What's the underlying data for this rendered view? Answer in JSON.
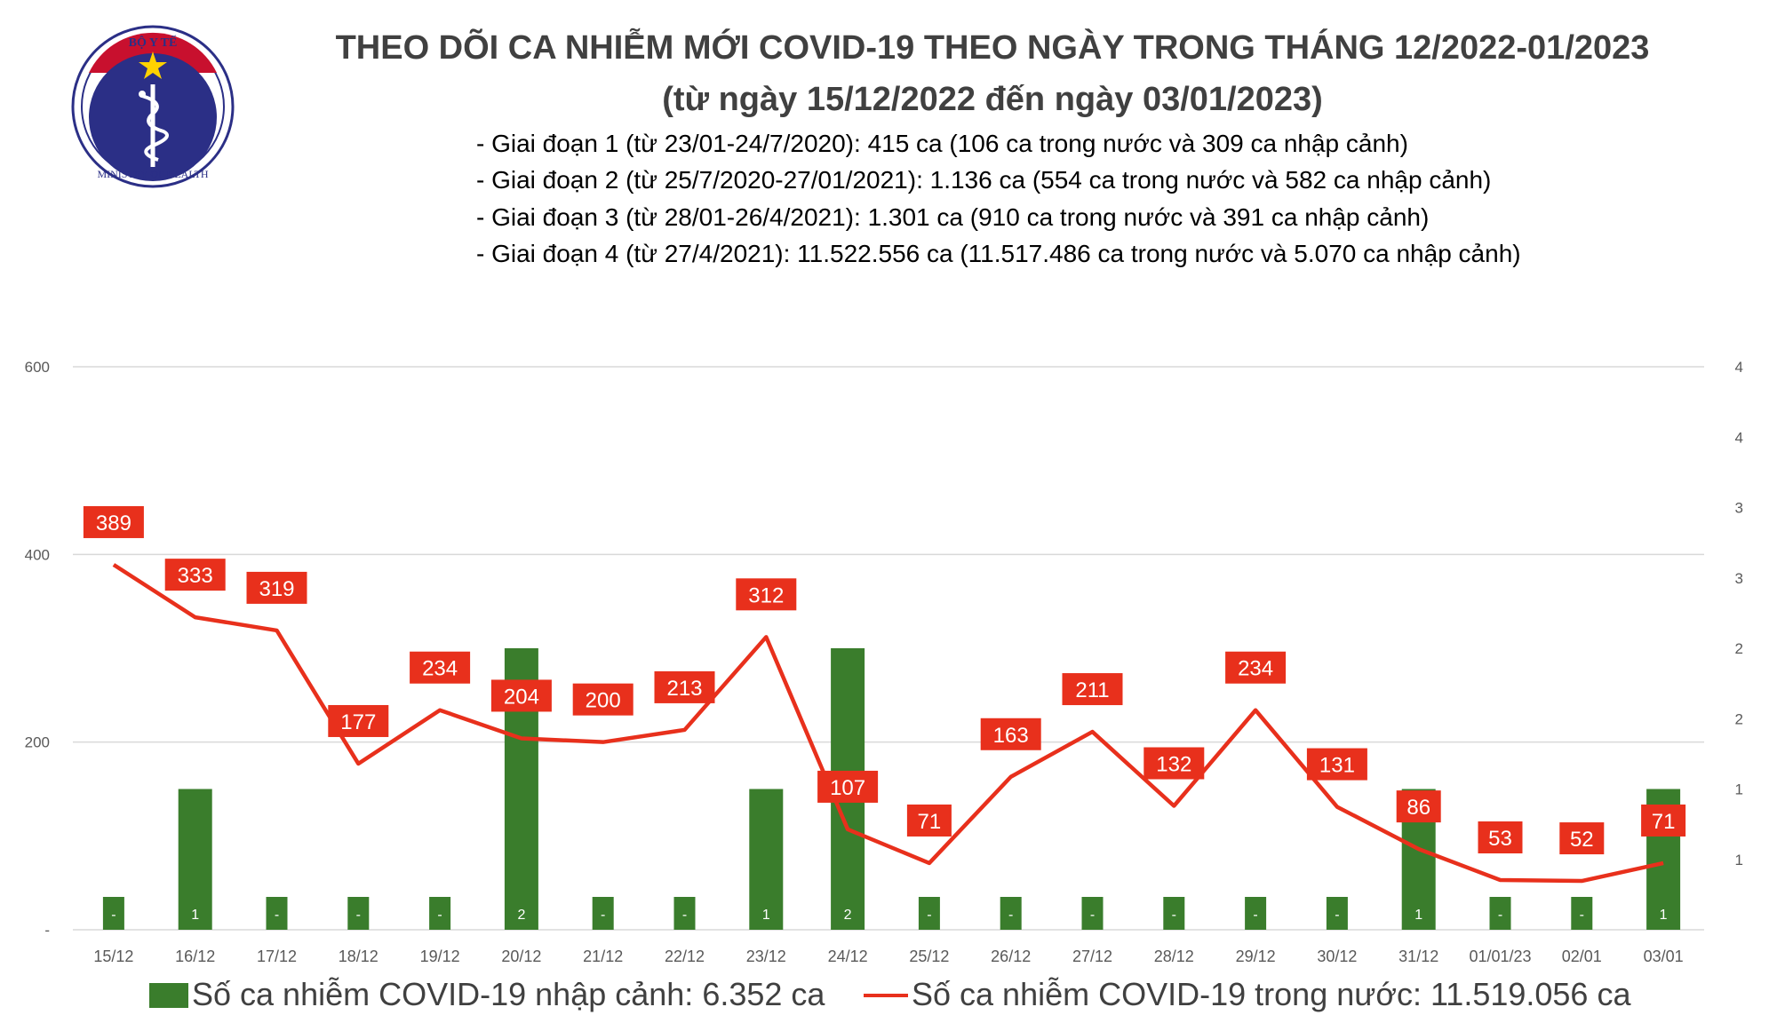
{
  "header": {
    "title_line1": "THEO DÕI CA NHIỄM MỚI COVID-19 THEO NGÀY TRONG THÁNG 12/2022-01/2023",
    "title_line2": "(từ ngày 15/12/2022 đến ngày 03/01/2023)",
    "periods": [
      "- Giai đoạn 1 (từ 23/01-24/7/2020): 415 ca (106 ca trong nước và 309 ca nhập cảnh)",
      "- Giai đoạn 2 (từ 25/7/2020-27/01/2021): 1.136 ca (554 ca trong nước và 582 ca nhập cảnh)",
      "- Giai đoạn 3 (từ 28/01-26/4/2021): 1.301 ca (910 ca trong nước và 391 ca nhập cảnh)",
      "- Giai đoạn 4 (từ 27/4/2021): 11.522.556 ca (11.517.486 ca trong nước và 5.070 ca nhập cảnh)"
    ]
  },
  "logo": {
    "top_text": "BỘ Y TẾ",
    "bottom_text": "MINISTRY OF HEALTH"
  },
  "colors": {
    "bar": "#3a7d2c",
    "line": "#e8301c",
    "label_bg": "#e8301c",
    "grid": "#d9d9d9"
  },
  "chart_data": {
    "type": "bar",
    "categories": [
      "15/12",
      "16/12",
      "17/12",
      "18/12",
      "19/12",
      "20/12",
      "21/12",
      "22/12",
      "23/12",
      "24/12",
      "25/12",
      "26/12",
      "27/12",
      "28/12",
      "29/12",
      "30/12",
      "31/12",
      "01/01/23",
      "02/01",
      "03/01"
    ],
    "series": [
      {
        "name": "Số ca nhiễm COVID-19 nhập cảnh: 6.352 ca",
        "type": "bar",
        "axis": "right",
        "values": [
          0,
          1,
          0,
          0,
          0,
          2,
          0,
          0,
          1,
          2,
          0,
          0,
          0,
          0,
          0,
          0,
          1,
          0,
          0,
          1
        ],
        "labels": [
          "-",
          "1",
          "-",
          "-",
          "-",
          "2",
          "-",
          "-",
          "1",
          "2",
          "-",
          "-",
          "-",
          "-",
          "-",
          "-",
          "1",
          "-",
          "-",
          "1"
        ]
      },
      {
        "name": "Số ca nhiễm COVID-19 trong nước: 11.519.056 ca",
        "type": "line",
        "axis": "left",
        "values": [
          389,
          333,
          319,
          177,
          234,
          204,
          200,
          213,
          312,
          107,
          71,
          163,
          211,
          132,
          234,
          131,
          86,
          53,
          52,
          71
        ]
      }
    ],
    "left_axis": {
      "ylim": [
        0,
        600
      ],
      "ticks": [
        "-",
        "200",
        "400",
        "600"
      ]
    },
    "right_axis": {
      "ylim": [
        0,
        4
      ],
      "ticks": [
        "1",
        "1",
        "2",
        "2",
        "3",
        "3",
        "4",
        "4"
      ]
    },
    "grid": true,
    "legend": "bottom"
  }
}
